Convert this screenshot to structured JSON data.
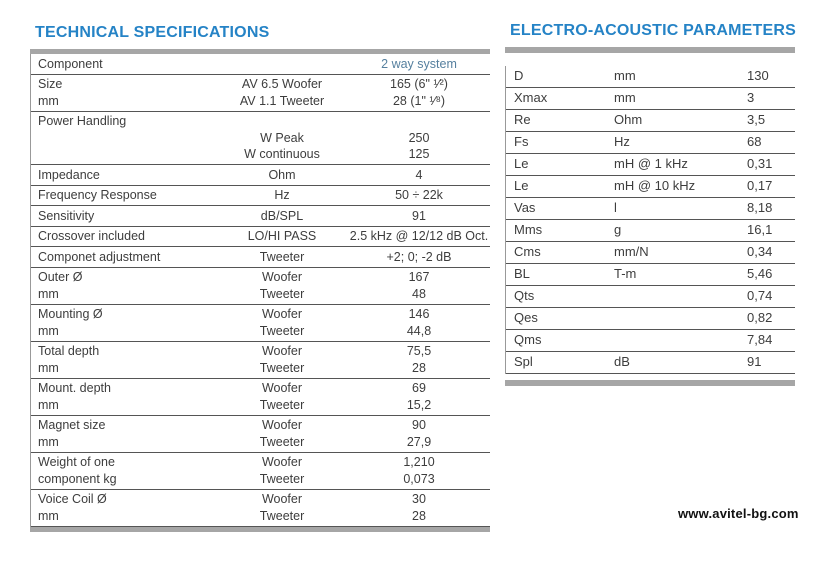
{
  "page": {
    "watermark": "www.avitel-bg.com"
  },
  "colors": {
    "title_blue": "#2583c6",
    "accent_value_blue": "#56809f",
    "bar_gray": "#a6a6a6",
    "line_gray": "#555555",
    "text_gray": "#3d3d3d"
  },
  "left_table": {
    "title": "TECHNICAL SPECIFICATIONS",
    "rows": [
      {
        "label": [
          "Component"
        ],
        "mid": [
          ""
        ],
        "value": [
          "2 way system"
        ],
        "accent": true
      },
      {
        "label": [
          "Size",
          "mm"
        ],
        "mid": [
          "AV 6.5 Woofer",
          "AV 1.1 Tweeter"
        ],
        "value": [
          "165 (6\" ¹⁄²)",
          "28 (1\" ¹⁄⁸)"
        ]
      },
      {
        "label": [
          "Power Handling"
        ],
        "mid": [
          "",
          "W Peak",
          "W  continuous"
        ],
        "value": [
          "",
          "250",
          "125"
        ]
      },
      {
        "label": [
          "Impedance"
        ],
        "mid": [
          "Ohm"
        ],
        "value": [
          "4"
        ]
      },
      {
        "label": [
          "Frequency Response"
        ],
        "mid": [
          "Hz"
        ],
        "value": [
          "50 ÷ 22k"
        ]
      },
      {
        "label": [
          "Sensitivity"
        ],
        "mid": [
          "dB/SPL"
        ],
        "value": [
          "91"
        ]
      },
      {
        "label": [
          "Crossover included"
        ],
        "mid": [
          "LO/HI PASS"
        ],
        "value": [
          "2.5 kHz @ 12/12 dB Oct."
        ]
      },
      {
        "label": [
          "Componet adjustment"
        ],
        "mid": [
          "Tweeter"
        ],
        "value": [
          "+2; 0; -2 dB"
        ]
      },
      {
        "label": [
          "Outer Ø",
          "mm"
        ],
        "mid": [
          "Woofer",
          "Tweeter"
        ],
        "value": [
          "167",
          "48"
        ]
      },
      {
        "label": [
          "Mounting Ø",
          "mm"
        ],
        "mid": [
          "Woofer",
          "Tweeter"
        ],
        "value": [
          "146",
          "44,8"
        ]
      },
      {
        "label": [
          "Total depth",
          "mm"
        ],
        "mid": [
          "Woofer",
          "Tweeter"
        ],
        "value": [
          "75,5",
          "28"
        ]
      },
      {
        "label": [
          "Mount. depth",
          "mm"
        ],
        "mid": [
          "Woofer",
          "Tweeter"
        ],
        "value": [
          "69",
          "15,2"
        ]
      },
      {
        "label": [
          "Magnet size",
          "mm"
        ],
        "mid": [
          "Woofer",
          "Tweeter"
        ],
        "value": [
          "90",
          "27,9"
        ]
      },
      {
        "label": [
          "Weight of one",
          "component kg"
        ],
        "mid": [
          "Woofer",
          "Tweeter"
        ],
        "value": [
          "1,210",
          "0,073"
        ]
      },
      {
        "label": [
          "Voice Coil Ø",
          "mm"
        ],
        "mid": [
          "Woofer",
          "Tweeter"
        ],
        "value": [
          "30",
          "28"
        ]
      }
    ]
  },
  "right_table": {
    "title": "ELECTRO-ACOUSTIC PARAMETERS",
    "rows": [
      {
        "param": "D",
        "unit": "mm",
        "value": "130"
      },
      {
        "param": "Xmax",
        "unit": "mm",
        "value": "3"
      },
      {
        "param": "Re",
        "unit": "Ohm",
        "value": "3,5"
      },
      {
        "param": "Fs",
        "unit": "Hz",
        "value": "68"
      },
      {
        "param": "Le",
        "unit": "mH @ 1 kHz",
        "value": "0,31"
      },
      {
        "param": "Le",
        "unit": "mH @ 10 kHz",
        "value": "0,17"
      },
      {
        "param": "Vas",
        "unit": "l",
        "value": "8,18"
      },
      {
        "param": "Mms",
        "unit": "g",
        "value": "16,1"
      },
      {
        "param": "Cms",
        "unit": "mm/N",
        "value": "0,34"
      },
      {
        "param": "BL",
        "unit": "T-m",
        "value": "5,46"
      },
      {
        "param": "Qts",
        "unit": "",
        "value": "0,74"
      },
      {
        "param": "Qes",
        "unit": "",
        "value": "0,82"
      },
      {
        "param": "Qms",
        "unit": "",
        "value": "7,84"
      },
      {
        "param": "Spl",
        "unit": "dB",
        "value": "91"
      }
    ]
  }
}
